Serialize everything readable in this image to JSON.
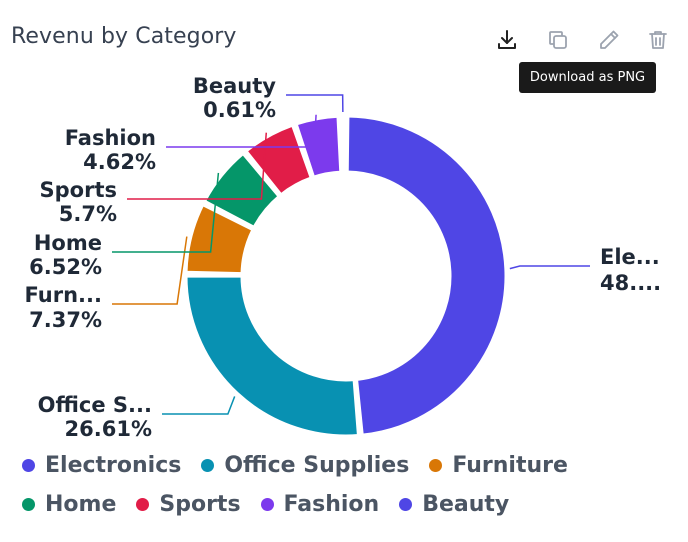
{
  "title": "Revenu by Category",
  "toolbar": {
    "buttons": [
      {
        "id": "download",
        "icon": "download-icon"
      },
      {
        "id": "copy",
        "icon": "copy-icon"
      },
      {
        "id": "edit",
        "icon": "pencil-icon"
      },
      {
        "id": "delete",
        "icon": "trash-icon"
      }
    ],
    "tooltip": "Download as PNG"
  },
  "chart_data": {
    "type": "pie",
    "donut": true,
    "title": "Revenu by Category",
    "slices": [
      {
        "name": "Electronics",
        "value": 48.57,
        "label_line1": "Ele...",
        "label_line2": "48....",
        "color": "#4f46e5"
      },
      {
        "name": "Office Supplies",
        "value": 26.61,
        "label_line1": "Office S...",
        "label_line2": "26.61%",
        "color": "#0891b2"
      },
      {
        "name": "Furniture",
        "value": 7.37,
        "label_line1": "Furn...",
        "label_line2": "7.37%",
        "color": "#d97706"
      },
      {
        "name": "Home",
        "value": 6.52,
        "label_line1": "Home",
        "label_line2": "6.52%",
        "color": "#059669"
      },
      {
        "name": "Sports",
        "value": 5.7,
        "label_line1": "Sports",
        "label_line2": "5.7%",
        "color": "#e11d48"
      },
      {
        "name": "Fashion",
        "value": 4.62,
        "label_line1": "Fashion",
        "label_line2": "4.62%",
        "color": "#7c3aed"
      },
      {
        "name": "Beauty",
        "value": 0.61,
        "label_line1": "Beauty",
        "label_line2": "0.61%",
        "color": "#4f46e5"
      }
    ],
    "legend_position": "bottom"
  }
}
